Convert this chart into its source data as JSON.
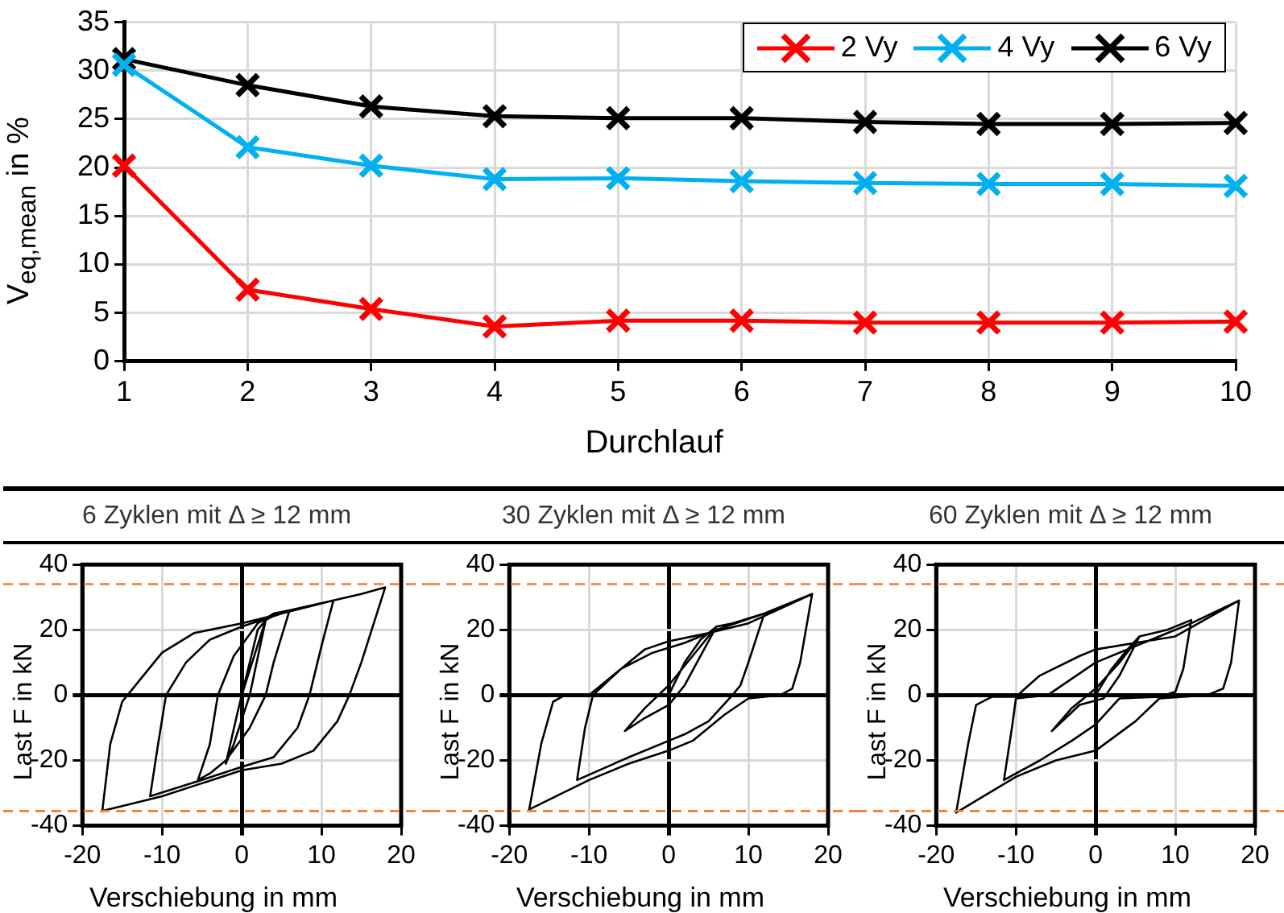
{
  "chart_data": [
    {
      "type": "line",
      "xlabel": "Durchlauf",
      "ylabel": "V$_{eq,mean}$ in %",
      "categories": [
        "1",
        "2",
        "3",
        "4",
        "5",
        "6",
        "7",
        "8",
        "9",
        "10"
      ],
      "ylim": [
        0,
        35
      ],
      "yticks": [
        0,
        5,
        10,
        15,
        20,
        25,
        30,
        35
      ],
      "grid": true,
      "legend": "top right",
      "marker": "cross",
      "line_style": "solid",
      "series": [
        {
          "name": "2 Vy",
          "color": "#ff0000",
          "values": [
            20.2,
            7.4,
            5.4,
            3.6,
            4.2,
            4.2,
            4.0,
            4.0,
            4.0,
            4.1
          ]
        },
        {
          "name": "4 Vy",
          "color": "#00b0f0",
          "values": [
            30.6,
            22.1,
            20.2,
            18.8,
            18.9,
            18.6,
            18.4,
            18.3,
            18.3,
            18.1
          ]
        },
        {
          "name": "6 Vy",
          "color": "#000000",
          "values": [
            31.2,
            28.5,
            26.3,
            25.3,
            25.1,
            25.1,
            24.7,
            24.5,
            24.5,
            24.6
          ]
        }
      ]
    },
    {
      "type": "line",
      "title": "6 Zyklen mit Δ ≥ 12 mm",
      "xlabel": "Verschiebung in mm",
      "ylabel": "Last F in kN",
      "xlim": [
        -20,
        20
      ],
      "ylim": [
        -40,
        40
      ],
      "xticks": [
        -20,
        -10,
        0,
        10,
        20
      ],
      "yticks": [
        -40,
        -20,
        0,
        20,
        40
      ],
      "grid": true,
      "marker": "none",
      "line_style": "solid",
      "ref_lines": [
        {
          "axis": "y",
          "value": 34,
          "color": "#ed7d31",
          "line_style": "dashed"
        },
        {
          "axis": "y",
          "value": -35.5,
          "color": "#ed7d31",
          "line_style": "dashed"
        }
      ],
      "series": [
        {
          "color": "#000000",
          "x": [
            0,
            2,
            3,
            1,
            -1,
            -2,
            -0.5,
            0,
            3,
            5,
            6,
            4,
            3,
            1,
            -2,
            -4,
            -5.5,
            -4,
            -3,
            -1,
            2,
            4,
            6,
            11.5,
            10,
            8.5,
            7,
            4,
            0,
            -5,
            -11.5,
            -10.5,
            -9.5,
            -7,
            -4,
            0,
            5,
            11.5,
            15,
            18,
            15,
            13.5,
            12,
            9,
            5,
            0,
            -5,
            -10,
            -17.5,
            -16.5,
            -15,
            -13,
            -10,
            -6,
            0,
            5
          ],
          "values": [
            0,
            20,
            23,
            0,
            -15,
            -21,
            -5,
            0,
            23,
            25.5,
            26,
            10,
            0,
            -10,
            -20,
            -24,
            -26,
            -15,
            0,
            12,
            22,
            25,
            26,
            29,
            15,
            0,
            -10,
            -19,
            -22,
            -26,
            -31,
            -15,
            0,
            10,
            17,
            21,
            25,
            29,
            31,
            33,
            10,
            0,
            -8,
            -17,
            -21,
            -23,
            -27,
            -31,
            -35.5,
            -15,
            -2,
            4,
            13,
            19,
            22,
            25
          ]
        }
      ]
    },
    {
      "type": "line",
      "title": "30 Zyklen mit Δ ≥ 12 mm",
      "xlabel": "Verschiebung in mm",
      "ylabel": "Last F in kN",
      "xlim": [
        -20,
        20
      ],
      "ylim": [
        -40,
        40
      ],
      "xticks": [
        -20,
        -10,
        0,
        10,
        20
      ],
      "yticks": [
        -40,
        -20,
        0,
        20,
        40
      ],
      "grid": true,
      "marker": "none",
      "line_style": "solid",
      "ref_lines": [
        {
          "axis": "y",
          "value": 34,
          "color": "#ed7d31",
          "line_style": "dashed"
        },
        {
          "axis": "y",
          "value": -35.5,
          "color": "#ed7d31",
          "line_style": "dashed"
        }
      ],
      "series": [
        {
          "color": "#000000",
          "x": [
            0,
            2,
            4,
            6,
            4,
            2,
            0,
            -3,
            -5.5,
            -3,
            0,
            3,
            6,
            8,
            12,
            10,
            9,
            8,
            5,
            2,
            0,
            -5,
            -11.5,
            -10.5,
            -9.5,
            -6,
            -2,
            2,
            6,
            12,
            18,
            16.5,
            15.5,
            14,
            10,
            7,
            3,
            0,
            -5,
            -10,
            -17.5,
            -16,
            -14.5,
            -13,
            -10,
            -7,
            -3,
            0,
            5,
            10,
            18
          ],
          "values": [
            0,
            10,
            17,
            21,
            12,
            3,
            -3,
            -7,
            -11,
            -4,
            3,
            12,
            21,
            22,
            25,
            10,
            3,
            0,
            -8,
            -12,
            -14,
            -19,
            -26,
            -10,
            0,
            8,
            13,
            16,
            20,
            25,
            31,
            10,
            2,
            0,
            -1,
            -6,
            -14,
            -17,
            -21,
            -26,
            -35,
            -15,
            -2,
            0,
            0,
            6,
            14,
            16.5,
            19,
            22,
            31
          ]
        }
      ]
    },
    {
      "type": "line",
      "title": "60 Zyklen mit Δ ≥ 12 mm",
      "xlabel": "Verschiebung in mm",
      "ylabel": "Last F in kN",
      "xlim": [
        -20,
        20
      ],
      "ylim": [
        -40,
        40
      ],
      "xticks": [
        -20,
        -10,
        0,
        10,
        20
      ],
      "yticks": [
        -40,
        -20,
        0,
        20,
        40
      ],
      "grid": true,
      "marker": "none",
      "line_style": "solid",
      "ref_lines": [
        {
          "axis": "y",
          "value": 34,
          "color": "#ed7d31",
          "line_style": "dashed"
        },
        {
          "axis": "y",
          "value": -35.5,
          "color": "#ed7d31",
          "line_style": "dashed"
        }
      ],
      "series": [
        {
          "color": "#000000",
          "x": [
            0,
            2,
            4,
            5.5,
            3,
            1,
            -2,
            -5.5,
            -3,
            0,
            3,
            5.5,
            9,
            12,
            11,
            10,
            8,
            3,
            0,
            -3,
            -7,
            -11.5,
            -10.5,
            -10,
            -6,
            -3,
            0,
            5,
            12,
            18,
            17,
            16,
            14,
            11,
            8,
            5,
            0,
            -5,
            -10,
            -17.5,
            -16,
            -15,
            -13,
            -10,
            -7,
            -2,
            0,
            5,
            10,
            18
          ],
          "values": [
            0,
            8,
            14,
            18,
            6,
            -1,
            -3,
            -11,
            -4,
            2,
            10,
            18,
            20,
            23,
            8,
            1,
            -0.5,
            -1,
            -9,
            -14,
            -20,
            -26,
            -10,
            -1,
            0,
            5,
            10,
            15,
            22,
            29,
            10,
            2,
            0,
            -0.5,
            -1,
            -8,
            -17,
            -20,
            -25,
            -36,
            -15,
            -3,
            -0.5,
            -0.5,
            6,
            12,
            14,
            16,
            18,
            29
          ]
        }
      ]
    }
  ]
}
